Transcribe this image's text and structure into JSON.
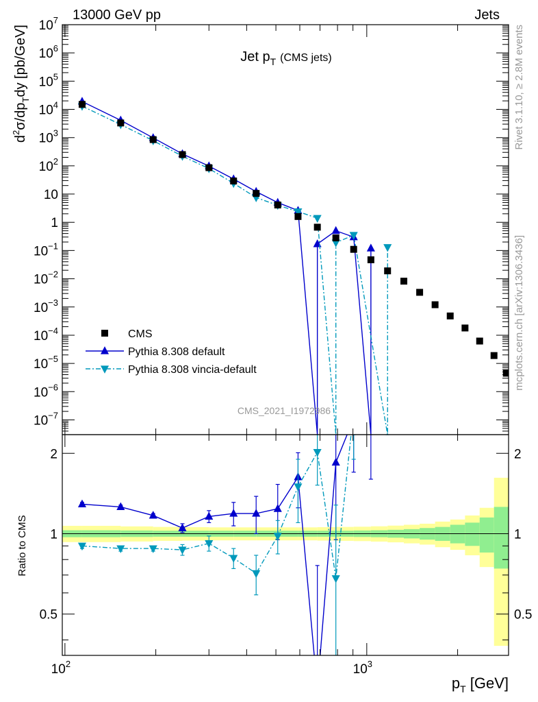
{
  "header": {
    "left": "13000 GeV pp",
    "right": "Jets"
  },
  "side_labels": {
    "top": "Rivet 3.1.10, ≥ 2.8M events",
    "bottom": "mcplots.cern.ch [arXiv:1306.3436]"
  },
  "chart_data": {
    "type": "scatter",
    "title": {
      "main": "Jet p",
      "sub": "T",
      "extra": "(CMS jets)"
    },
    "watermark": "CMS_2021_I1972986",
    "x_log": true,
    "y_log": true,
    "xlim": [
      98,
      2950
    ],
    "ylim": [
      3e-08,
      10000000.0
    ],
    "ratio_ylim": [
      0.35,
      2.35
    ],
    "xlabel": {
      "main": "p",
      "sub": "T",
      "unit": " [GeV]"
    },
    "ylabel": {
      "d2": "d",
      "sup": "2",
      "sigma": "σ/dp",
      "sub": "T",
      "rest": "dy [pb/GeV]"
    },
    "ratio_ylabel": "Ratio to CMS",
    "x_tick_labels": [
      "10",
      "2",
      "10",
      "3"
    ],
    "y_tick_labels": [
      {
        "v": 10000000.0,
        "b": "10",
        "e": "7"
      },
      {
        "v": 1000000.0,
        "b": "10",
        "e": "6"
      },
      {
        "v": 100000.0,
        "b": "10",
        "e": "5"
      },
      {
        "v": 10000.0,
        "b": "10",
        "e": "4"
      },
      {
        "v": 1000.0,
        "b": "10",
        "e": "3"
      },
      {
        "v": 100.0,
        "b": "10",
        "e": "2"
      },
      {
        "v": 10,
        "b": "10",
        "e": ""
      },
      {
        "v": 1,
        "b": "1",
        "e": ""
      },
      {
        "v": 0.1,
        "b": "10",
        "e": "−1"
      },
      {
        "v": 0.01,
        "b": "10",
        "e": "−2"
      },
      {
        "v": 0.001,
        "b": "10",
        "e": "−3"
      },
      {
        "v": 0.0001,
        "b": "10",
        "e": "−4"
      },
      {
        "v": 1e-05,
        "b": "10",
        "e": "−5"
      },
      {
        "v": 1e-06,
        "b": "10",
        "e": "−6"
      },
      {
        "v": 1e-07,
        "b": "10",
        "e": "−7"
      }
    ],
    "ratio_tick_labels": [
      "0.5",
      "1",
      "2"
    ],
    "legend": {
      "placement": "bottom-left",
      "entries": [
        "CMS",
        "Pythia 8.308 default",
        "Pythia 8.308 vincia-default"
      ]
    },
    "cms": {
      "name": "CMS",
      "x": [
        114,
        153,
        196,
        245,
        300,
        362,
        430,
        507,
        592,
        686,
        790,
        905,
        1032,
        1172,
        1327,
        1497,
        1684,
        1890,
        2116,
        2366,
        2640,
        2900
      ],
      "y": [
        15000,
        3300,
        850,
        250,
        86,
        29,
        10.5,
        4.1,
        1.6,
        0.67,
        0.28,
        0.11,
        0.047,
        0.019,
        0.0082,
        0.0033,
        0.0012,
        0.00048,
        0.00018,
        6.2e-05,
        1.9e-05,
        4.5e-06
      ]
    },
    "default": {
      "name": "Pythia 8.308 default",
      "x": [
        114,
        153,
        196,
        245,
        300,
        362,
        430,
        507,
        592,
        686,
        790,
        905,
        1032
      ],
      "y": [
        19000,
        4100,
        980,
        265,
        98,
        34,
        12.2,
        5.0,
        2.6,
        0.17,
        0.5,
        0.3,
        0.12
      ],
      "ratio": [
        1.29,
        1.26,
        1.17,
        1.05,
        1.16,
        1.19,
        1.19,
        1.24,
        1.63,
        0.26,
        1.85,
        2.7,
        2.6
      ],
      "ratio_err": [
        0.02,
        0.02,
        0.02,
        0.04,
        0.06,
        0.12,
        0.19,
        0.29,
        0.38,
        0.5,
        0.9,
        1.0,
        1.0
      ],
      "drop_at": [
        686,
        1032
      ]
    },
    "vincia": {
      "name": "Pythia 8.308 vincia-default",
      "x": [
        114,
        153,
        196,
        245,
        300,
        362,
        430,
        507,
        592,
        686,
        790,
        905,
        1172
      ],
      "y": [
        13000,
        2900,
        780,
        220,
        80,
        24,
        7.5,
        4.0,
        2.4,
        1.4,
        0.19,
        0.35,
        0.13
      ],
      "ratio": [
        0.9,
        0.88,
        0.88,
        0.87,
        0.92,
        0.81,
        0.71,
        0.98,
        1.5,
        2.02,
        0.68,
        2.9,
        6.8
      ],
      "ratio_err": [
        0.02,
        0.02,
        0.02,
        0.04,
        0.06,
        0.07,
        0.12,
        0.14,
        0.4,
        0.5,
        0.6,
        1.0,
        1.0
      ],
      "drop_at": [
        790,
        1172
      ]
    },
    "uncertainty_band": {
      "edges": [
        98,
        114,
        153,
        196,
        245,
        300,
        362,
        430,
        507,
        592,
        686,
        790,
        905,
        1032,
        1172,
        1327,
        1497,
        1684,
        1890,
        2116,
        2366,
        2640,
        2950
      ],
      "inner": [
        0.03,
        0.03,
        0.028,
        0.026,
        0.026,
        0.026,
        0.026,
        0.026,
        0.026,
        0.026,
        0.026,
        0.026,
        0.028,
        0.03,
        0.034,
        0.04,
        0.05,
        0.06,
        0.08,
        0.1,
        0.15,
        0.26
      ],
      "outer": [
        0.07,
        0.07,
        0.065,
        0.06,
        0.058,
        0.056,
        0.056,
        0.056,
        0.056,
        0.056,
        0.058,
        0.06,
        0.062,
        0.066,
        0.072,
        0.08,
        0.09,
        0.11,
        0.13,
        0.17,
        0.25,
        0.62
      ]
    },
    "colors": {
      "cms": "#000000",
      "default": "#0000cc",
      "vincia": "#0099bb",
      "band_inner": "#90ee90",
      "band_outer": "#ffff99"
    }
  }
}
